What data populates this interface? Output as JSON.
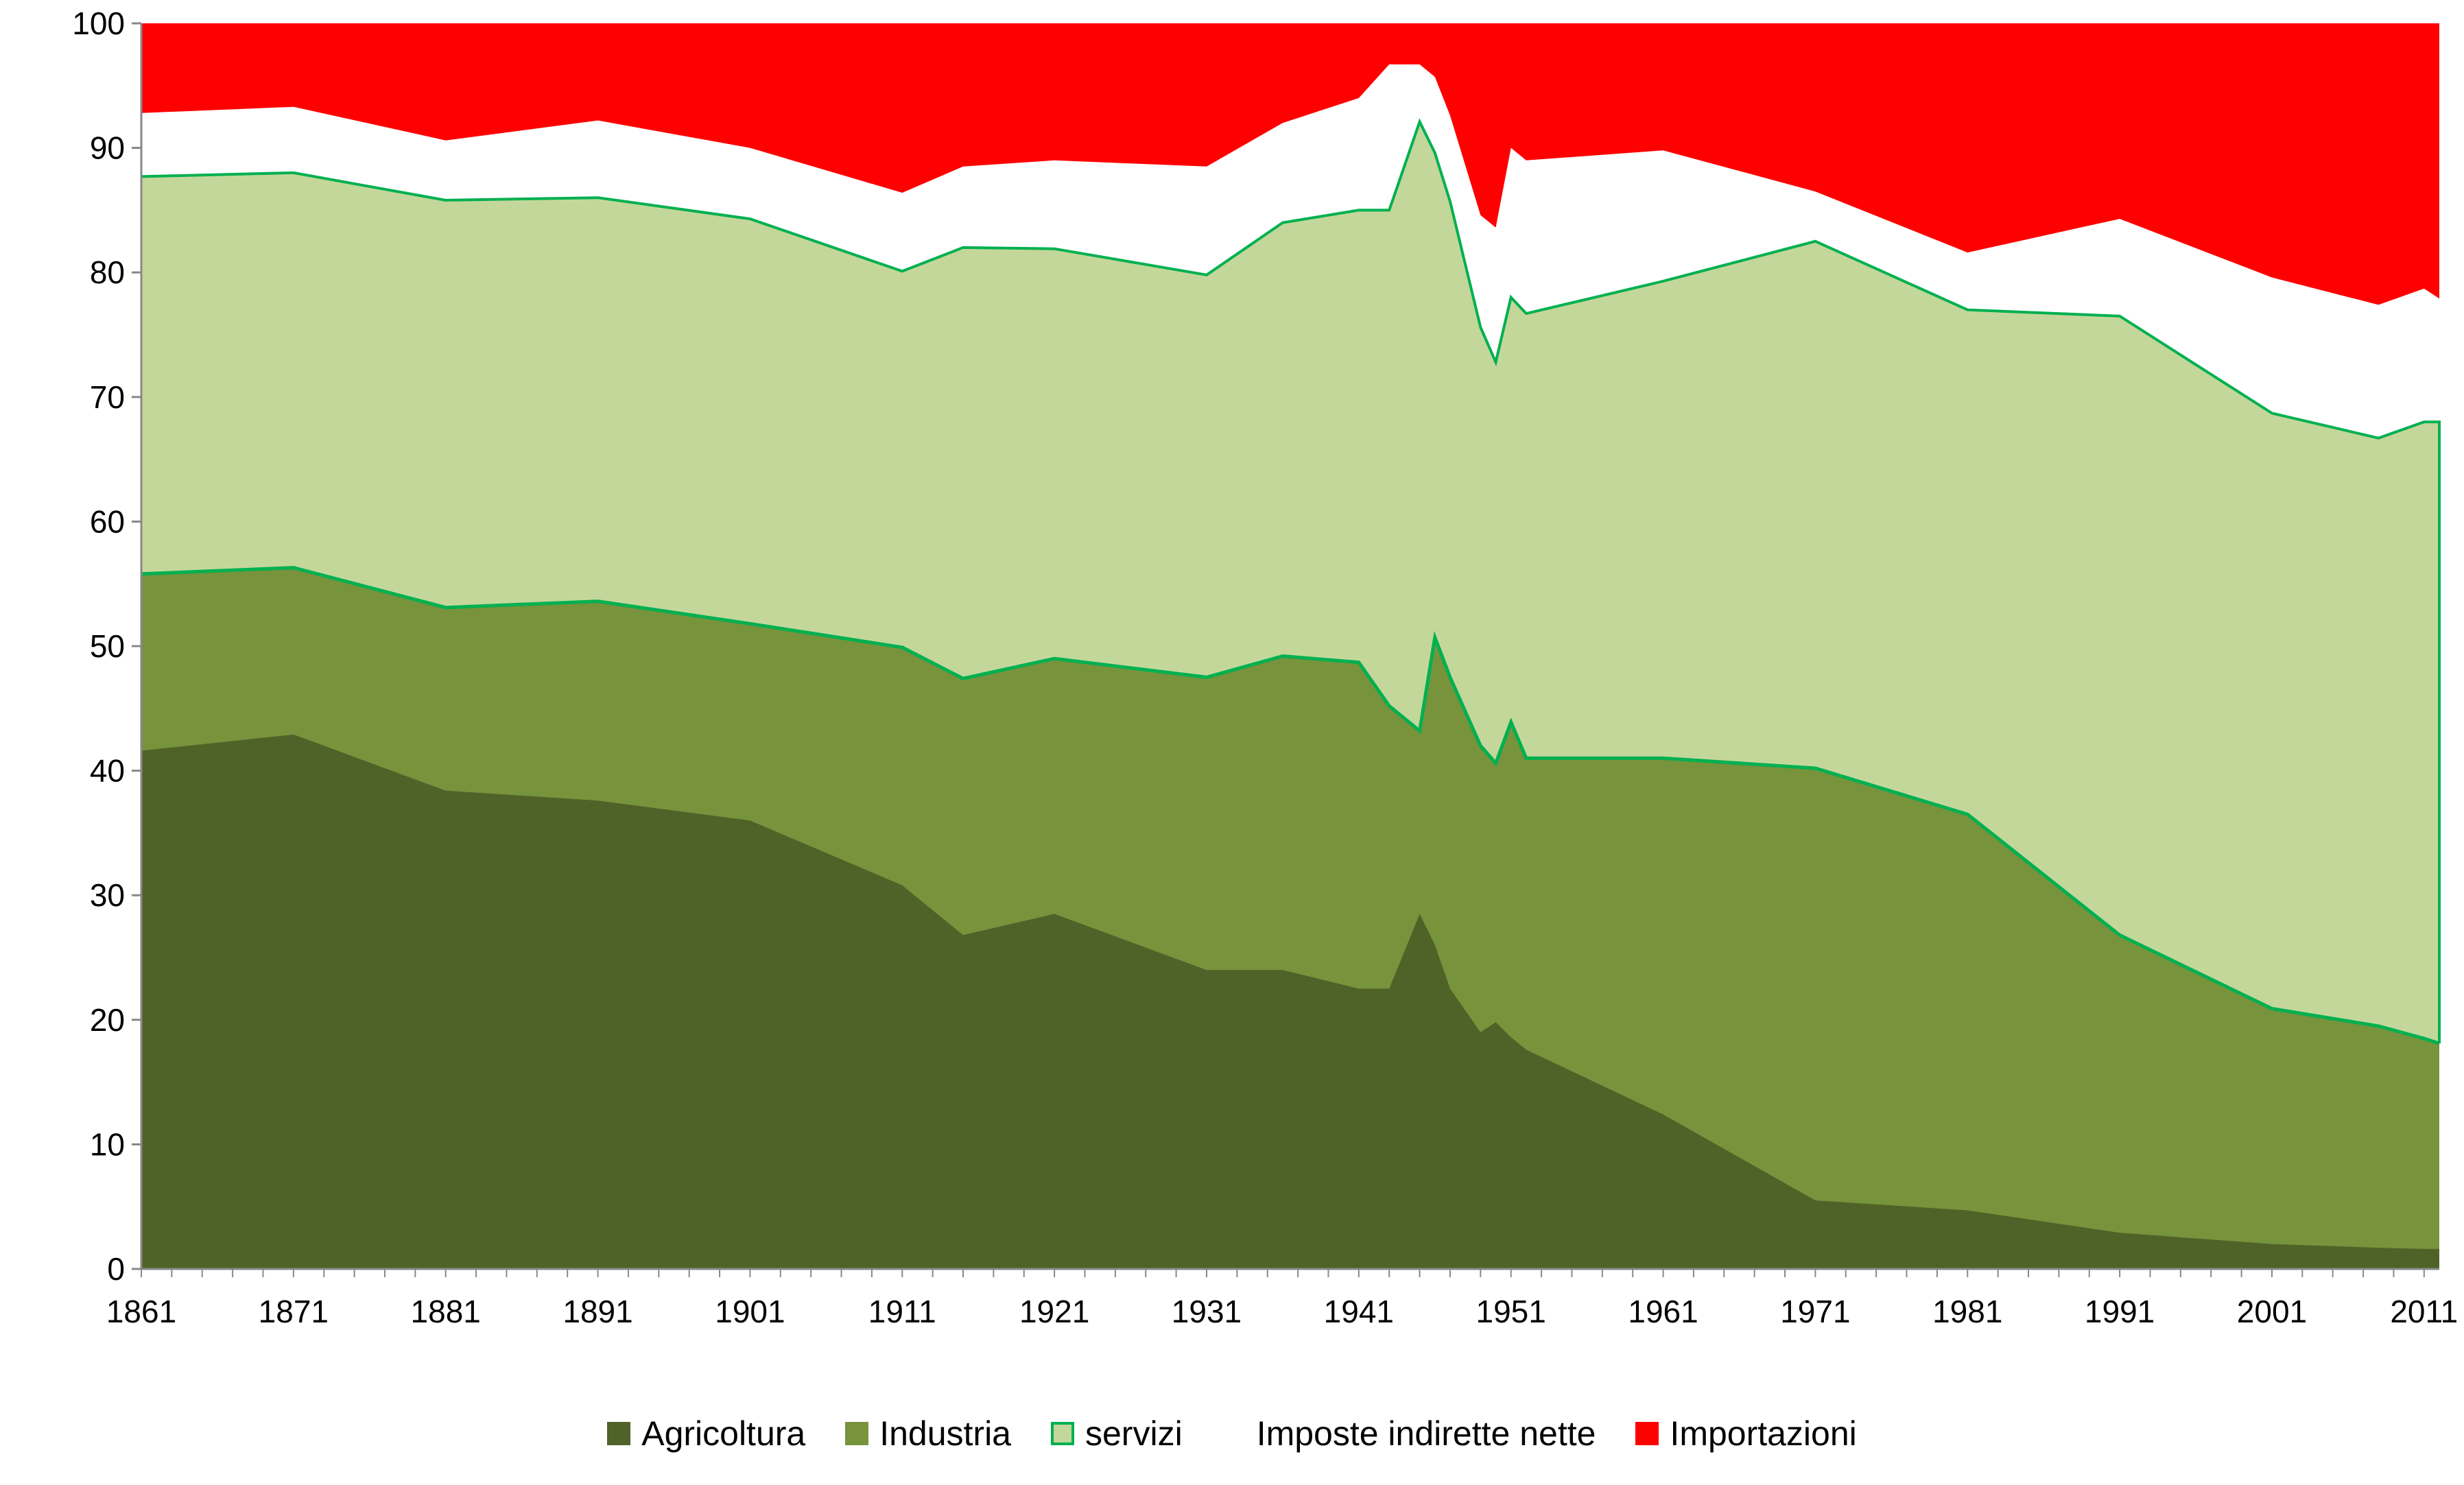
{
  "chart_data": {
    "type": "area",
    "stacked": true,
    "title": "",
    "xlabel": "",
    "ylabel": "",
    "ylim": [
      0,
      100
    ],
    "xlim": [
      1861,
      2012
    ],
    "yticks": [
      "0",
      "10",
      "20",
      "30",
      "40",
      "50",
      "60",
      "70",
      "80",
      "90",
      "100"
    ],
    "xticks": [
      "1861",
      "1871",
      "1881",
      "1891",
      "1901",
      "1911",
      "1921",
      "1931",
      "1941",
      "1951",
      "1961",
      "1971",
      "1981",
      "1991",
      "2001",
      "2011"
    ],
    "legend_position": "bottom",
    "x": [
      1861,
      1871,
      1881,
      1891,
      1901,
      1911,
      1915,
      1921,
      1931,
      1936,
      1941,
      1943,
      1945,
      1946,
      1947,
      1949,
      1950,
      1951,
      1952,
      1961,
      1971,
      1981,
      1991,
      2001,
      2008,
      2011,
      2012
    ],
    "cumulative_series": [
      {
        "name": "Agricoltura",
        "color": "#4f6228",
        "values": [
          41.6,
          42.9,
          38.4,
          37.6,
          36.0,
          30.8,
          26.8,
          28.5,
          24.0,
          24.0,
          22.5,
          22.5,
          28.5,
          26.0,
          22.5,
          19.0,
          19.8,
          18.6,
          17.6,
          12.4,
          5.5,
          4.7,
          2.9,
          2.0,
          1.7,
          1.6,
          1.6
        ]
      },
      {
        "name": "Industria",
        "color": "#77933c",
        "values": [
          55.8,
          56.3,
          53.1,
          53.6,
          51.8,
          49.9,
          47.4,
          49.0,
          47.5,
          49.2,
          48.7,
          45.2,
          43.2,
          50.7,
          47.5,
          42.0,
          40.6,
          43.9,
          41.0,
          41.0,
          40.2,
          36.5,
          26.8,
          20.9,
          19.5,
          18.5,
          18.1
        ]
      },
      {
        "name": "servizi",
        "color": "#c4d79b",
        "line_color": "#00b050",
        "values": [
          87.7,
          88.0,
          85.8,
          86.0,
          84.3,
          80.1,
          82.0,
          81.9,
          79.8,
          84.0,
          85.0,
          85.0,
          92.1,
          89.6,
          85.7,
          75.6,
          72.8,
          78.0,
          76.7,
          79.3,
          82.5,
          77.0,
          76.5,
          68.7,
          66.7,
          68.0,
          68.0
        ]
      },
      {
        "name": "Imposte indirette nette",
        "color": "#ffffff",
        "values": [
          92.8,
          93.3,
          90.6,
          92.2,
          90.0,
          86.4,
          88.5,
          89.0,
          88.5,
          92.0,
          94.0,
          96.7,
          96.7,
          95.7,
          92.6,
          84.6,
          83.6,
          90.0,
          89.0,
          89.8,
          86.5,
          81.6,
          84.3,
          79.6,
          77.4,
          78.7,
          77.9
        ]
      },
      {
        "name": "Importazioni",
        "color": "#ff0000",
        "values": [
          100,
          100,
          100,
          100,
          100,
          100,
          100,
          100,
          100,
          100,
          100,
          100,
          100,
          100,
          100,
          100,
          100,
          100,
          100,
          100,
          100,
          100,
          100,
          100,
          100,
          100,
          100
        ]
      }
    ]
  }
}
